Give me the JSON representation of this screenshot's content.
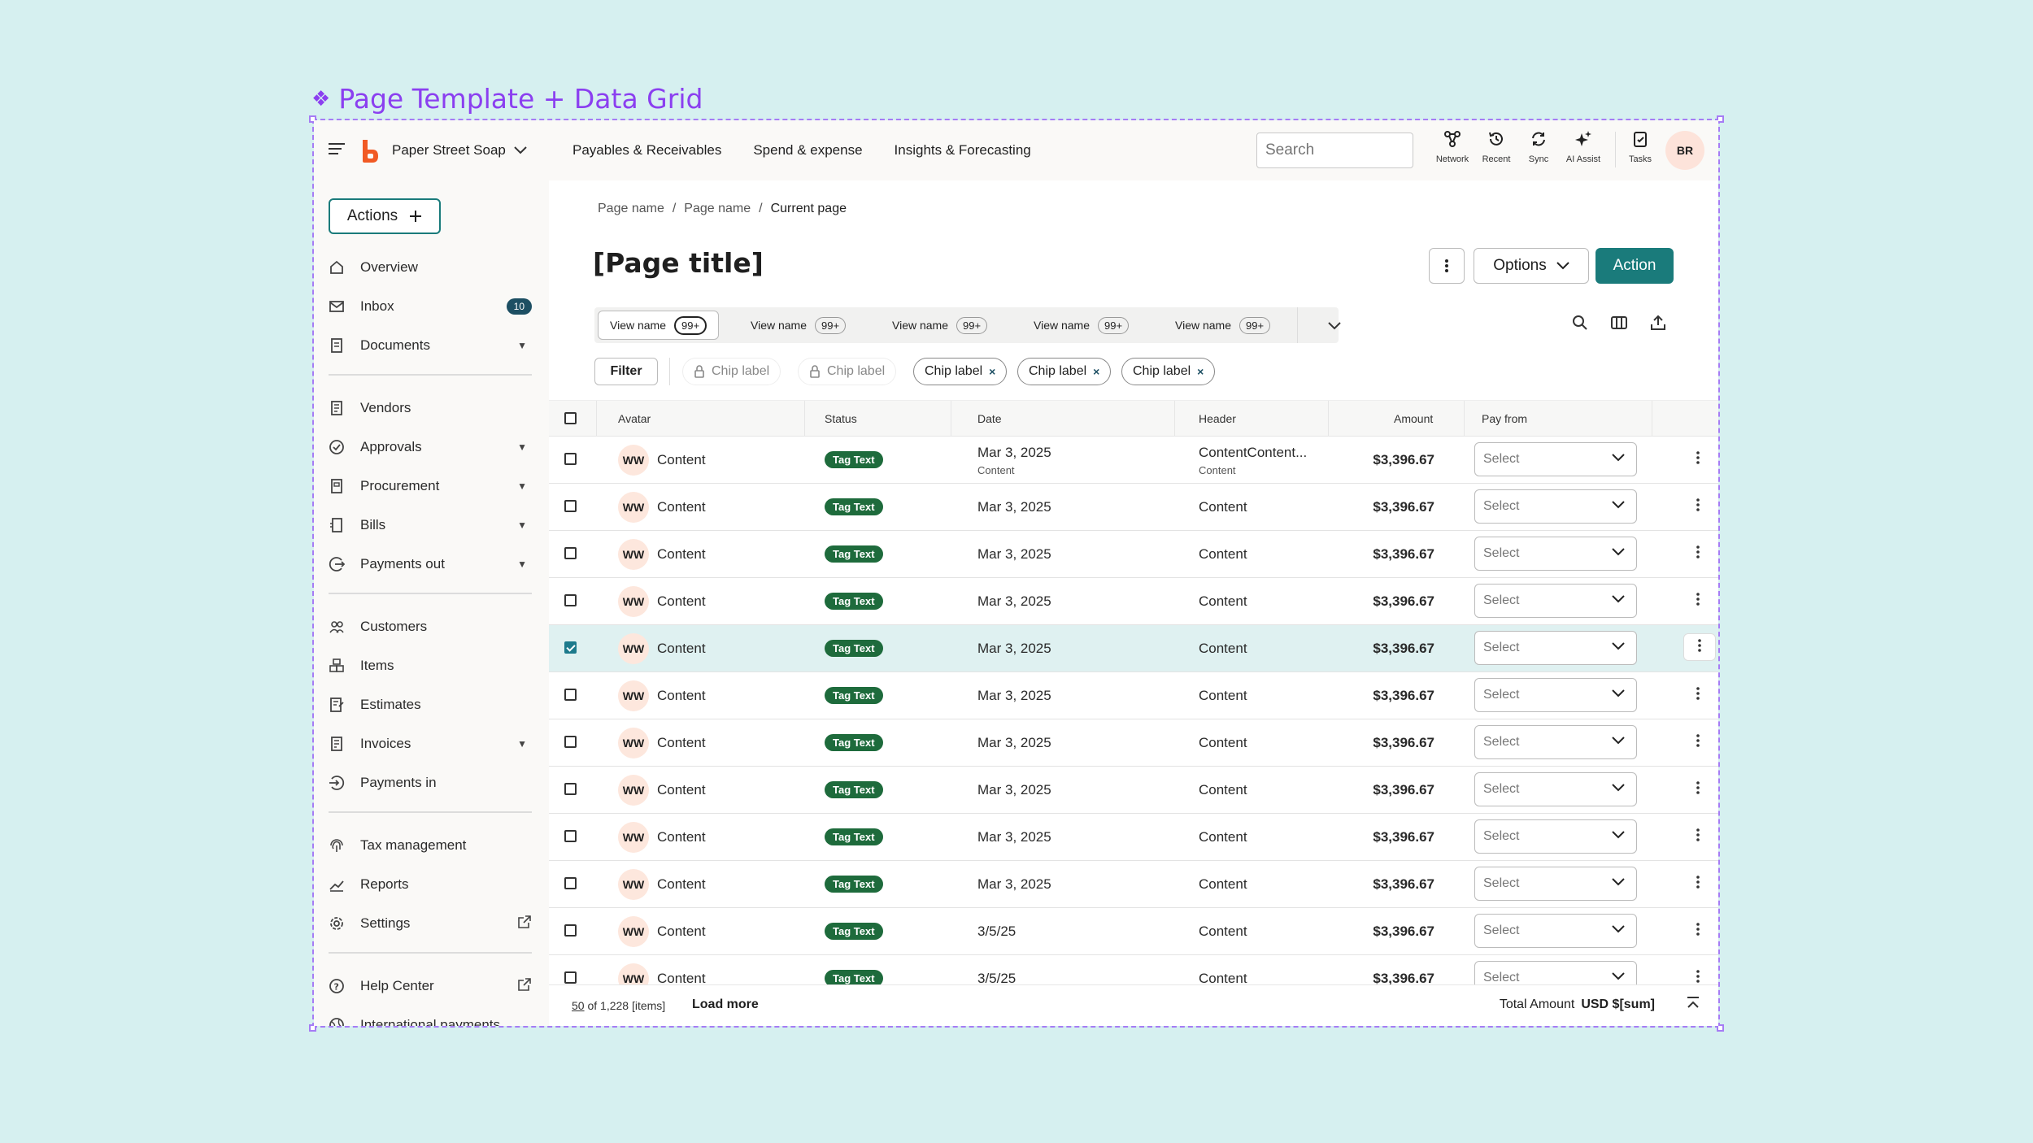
{
  "template_title": "Page Template + Data Grid",
  "topnav": {
    "company": "Paper Street Soap",
    "links": [
      "Payables & Receivables",
      "Spend & expense",
      "Insights & Forecasting"
    ],
    "search_placeholder": "Search",
    "tools": [
      "Network",
      "Recent",
      "Sync",
      "AI Assist",
      "Tasks"
    ],
    "avatar": "BR"
  },
  "sidebar": {
    "actions_label": "Actions",
    "items": [
      {
        "label": "Overview",
        "icon": "home-icon"
      },
      {
        "label": "Inbox",
        "icon": "mail-icon",
        "badge": "10"
      },
      {
        "label": "Documents",
        "icon": "documents-icon"
      },
      {
        "label": "Vendors",
        "icon": "vendors-icon"
      },
      {
        "label": "Approvals",
        "icon": "check-circle-icon"
      },
      {
        "label": "Procurement",
        "icon": "procurement-icon"
      },
      {
        "label": "Bills",
        "icon": "bills-icon"
      },
      {
        "label": "Payments out",
        "icon": "payments-out-icon"
      },
      {
        "label": "Customers",
        "icon": "customers-icon"
      },
      {
        "label": "Items",
        "icon": "items-icon"
      },
      {
        "label": "Estimates",
        "icon": "estimates-icon"
      },
      {
        "label": "Invoices",
        "icon": "invoices-icon"
      },
      {
        "label": "Payments in",
        "icon": "payments-in-icon"
      },
      {
        "label": "Tax management",
        "icon": "fingerprint-icon"
      },
      {
        "label": "Reports",
        "icon": "reports-icon"
      },
      {
        "label": "Settings",
        "icon": "gear-icon"
      },
      {
        "label": "Help Center",
        "icon": "help-icon"
      },
      {
        "label": "International payments",
        "icon": "globe-icon"
      }
    ]
  },
  "main": {
    "breadcrumb": [
      "Page name",
      "/",
      "Page name",
      "/",
      "Current page"
    ],
    "title": "[Page title]",
    "options_label": "Options",
    "action_label": "Action",
    "views": [
      {
        "name": "View name",
        "count": "99+"
      },
      {
        "name": "View name",
        "count": "99+"
      },
      {
        "name": "View name",
        "count": "99+"
      },
      {
        "name": "View name",
        "count": "99+"
      },
      {
        "name": "View name",
        "count": "99+"
      }
    ],
    "filter_label": "Filter",
    "chips": [
      "Chip label",
      "Chip label",
      "Chip label",
      "Chip label",
      "Chip label"
    ],
    "chip_remove": "×",
    "columns": [
      "Avatar",
      "Status",
      "Date",
      "Header",
      "Amount",
      "Pay from"
    ],
    "rows": [
      {
        "avatar": "WW",
        "content": "Content",
        "tag": "Tag Text",
        "date": "Mar 3, 2025",
        "date_sub": "Content",
        "header": "ContentContent...",
        "header_sub": "Content",
        "amount": "$3,396.67",
        "select": "Select"
      },
      {
        "avatar": "WW",
        "content": "Content",
        "tag": "Tag Text",
        "date": "Mar 3, 2025",
        "header": "Content",
        "amount": "$3,396.67",
        "select": "Select"
      },
      {
        "avatar": "WW",
        "content": "Content",
        "tag": "Tag Text",
        "date": "Mar 3, 2025",
        "header": "Content",
        "amount": "$3,396.67",
        "select": "Select"
      },
      {
        "avatar": "WW",
        "content": "Content",
        "tag": "Tag Text",
        "date": "Mar 3, 2025",
        "header": "Content",
        "amount": "$3,396.67",
        "select": "Select"
      },
      {
        "avatar": "WW",
        "content": "Content",
        "tag": "Tag Text",
        "date": "Mar 3, 2025",
        "header": "Content",
        "amount": "$3,396.67",
        "select": "Select",
        "selected": true
      },
      {
        "avatar": "WW",
        "content": "Content",
        "tag": "Tag Text",
        "date": "Mar 3, 2025",
        "header": "Content",
        "amount": "$3,396.67",
        "select": "Select"
      },
      {
        "avatar": "WW",
        "content": "Content",
        "tag": "Tag Text",
        "date": "Mar 3, 2025",
        "header": "Content",
        "amount": "$3,396.67",
        "select": "Select"
      },
      {
        "avatar": "WW",
        "content": "Content",
        "tag": "Tag Text",
        "date": "Mar 3, 2025",
        "header": "Content",
        "amount": "$3,396.67",
        "select": "Select"
      },
      {
        "avatar": "WW",
        "content": "Content",
        "tag": "Tag Text",
        "date": "Mar 3, 2025",
        "header": "Content",
        "amount": "$3,396.67",
        "select": "Select"
      },
      {
        "avatar": "WW",
        "content": "Content",
        "tag": "Tag Text",
        "date": "Mar 3, 2025",
        "header": "Content",
        "amount": "$3,396.67",
        "select": "Select"
      },
      {
        "avatar": "WW",
        "content": "Content",
        "tag": "Tag Text",
        "date": "3/5/25",
        "header": "Content",
        "amount": "$3,396.67",
        "select": "Select"
      },
      {
        "avatar": "WW",
        "content": "Content",
        "tag": "Tag Text",
        "date": "3/5/25",
        "header": "Content",
        "amount": "$3,396.67",
        "select": "Select"
      }
    ],
    "footer": {
      "shown": "50",
      "of_total": " of 1,228 [items]",
      "load_more": "Load more",
      "total_label": "Total Amount",
      "total_value": "USD $[sum]"
    }
  },
  "colors": {
    "accent": "#1a7b7b",
    "tag": "#1e6b3c",
    "template_purple": "#8b3ff0",
    "background": "#d6f0f0"
  }
}
